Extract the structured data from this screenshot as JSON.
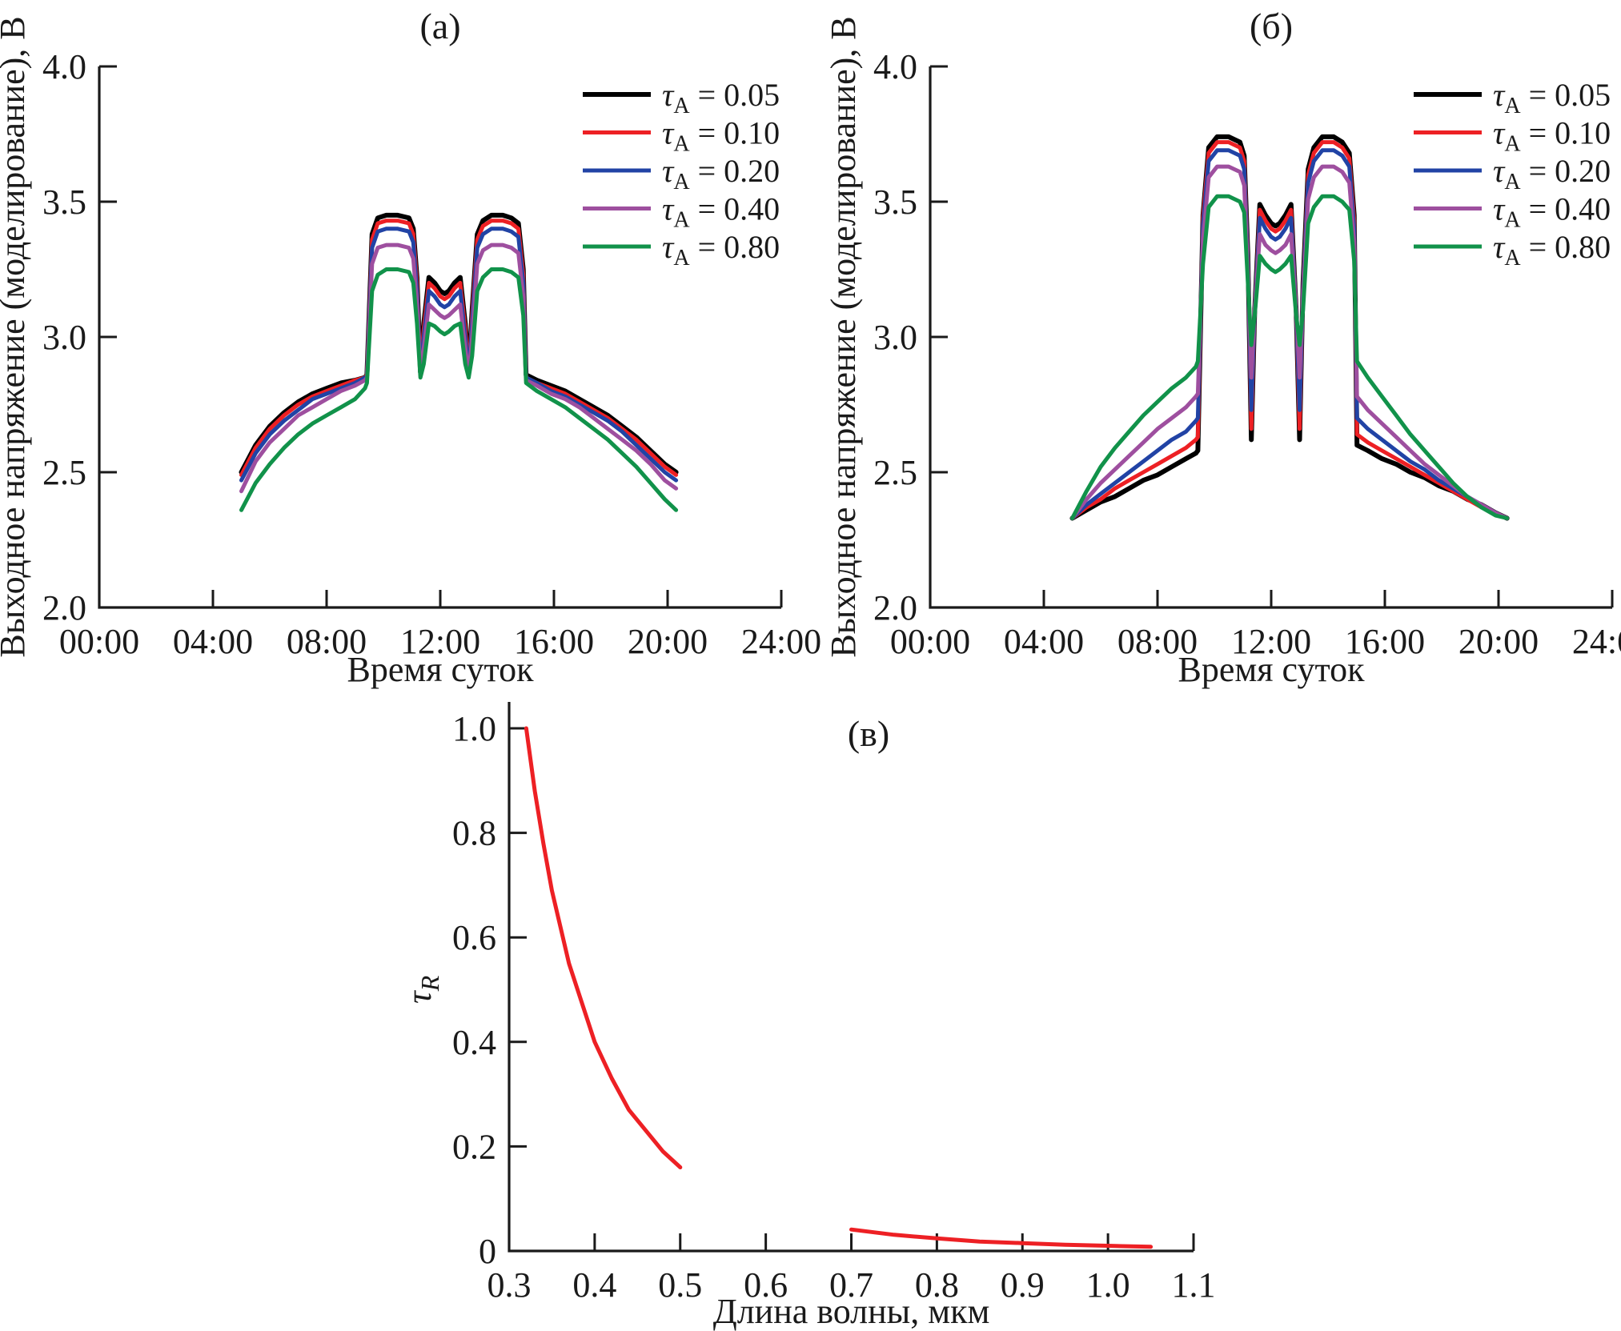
{
  "figure": {
    "background": "#ffffff",
    "axis_color": "#1a1a1a",
    "panel_labels": [
      "(а)",
      "(б)",
      "(в)"
    ]
  },
  "chart_data": [
    {
      "id": "a",
      "type": "line",
      "title": "(а)",
      "xlabel": "Время суток",
      "ylabel": "Выходное напряжение (моделирование), В",
      "xlim": [
        0,
        24
      ],
      "ylim": [
        2.0,
        4.0
      ],
      "grid": false,
      "legend_position": "upper right",
      "legend_symbol": {
        "base": "τ",
        "sub": "A"
      },
      "xticks": [
        {
          "value": 0,
          "label": "00:00"
        },
        {
          "value": 4,
          "label": "04:00"
        },
        {
          "value": 8,
          "label": "08:00"
        },
        {
          "value": 12,
          "label": "12:00"
        },
        {
          "value": 16,
          "label": "16:00"
        },
        {
          "value": 20,
          "label": "20:00"
        },
        {
          "value": 24,
          "label": "24:00"
        }
      ],
      "yticks": [
        {
          "value": 2.0,
          "label": "2.0"
        },
        {
          "value": 2.5,
          "label": "2.5"
        },
        {
          "value": 3.0,
          "label": "3.0"
        },
        {
          "value": 3.5,
          "label": "3.5"
        },
        {
          "value": 4.0,
          "label": "4.0"
        }
      ],
      "x_hours": [
        5,
        5.5,
        6,
        6.5,
        7,
        7.5,
        8,
        8.5,
        9,
        9.35,
        9.42,
        9.6,
        9.8,
        10.1,
        10.5,
        10.9,
        11.05,
        11.18,
        11.3,
        11.42,
        11.6,
        11.8,
        12,
        12.15,
        12.3,
        12.5,
        12.7,
        12.88,
        13,
        13.12,
        13.3,
        13.5,
        13.8,
        14.2,
        14.5,
        14.75,
        14.92,
        15.02,
        15.4,
        15.9,
        16.4,
        16.9,
        17.4,
        17.9,
        18.4,
        18.9,
        19.4,
        19.9,
        20.3
      ],
      "series": [
        {
          "id": "tau-005",
          "tau_a": "0.05",
          "legend_label": "τA = 0.05",
          "color": "#000000",
          "stroke_width": 6,
          "values": [
            2.5,
            2.6,
            2.67,
            2.72,
            2.76,
            2.79,
            2.81,
            2.83,
            2.84,
            2.85,
            2.86,
            3.38,
            3.44,
            3.45,
            3.45,
            3.44,
            3.4,
            3.22,
            2.87,
            3.05,
            3.22,
            3.2,
            3.17,
            3.16,
            3.17,
            3.2,
            3.22,
            3.05,
            2.87,
            3.1,
            3.38,
            3.43,
            3.45,
            3.45,
            3.44,
            3.42,
            3.25,
            2.86,
            2.84,
            2.82,
            2.8,
            2.77,
            2.74,
            2.71,
            2.67,
            2.63,
            2.58,
            2.53,
            2.5
          ]
        },
        {
          "id": "tau-010",
          "tau_a": "0.10",
          "legend_label": "τA = 0.10",
          "color": "#ed2024",
          "stroke_width": 5,
          "values": [
            2.49,
            2.59,
            2.66,
            2.71,
            2.75,
            2.78,
            2.8,
            2.82,
            2.84,
            2.85,
            2.86,
            3.36,
            3.42,
            3.43,
            3.43,
            3.42,
            3.38,
            3.2,
            2.87,
            3.03,
            3.2,
            3.18,
            3.15,
            3.14,
            3.15,
            3.18,
            3.2,
            3.03,
            2.87,
            3.08,
            3.36,
            3.41,
            3.43,
            3.43,
            3.42,
            3.4,
            3.23,
            2.85,
            2.83,
            2.81,
            2.79,
            2.76,
            2.73,
            2.7,
            2.66,
            2.62,
            2.57,
            2.52,
            2.49
          ]
        },
        {
          "id": "tau-020",
          "tau_a": "0.20",
          "legend_label": "τA = 0.20",
          "color": "#2143a5",
          "stroke_width": 5,
          "values": [
            2.47,
            2.57,
            2.64,
            2.69,
            2.73,
            2.77,
            2.79,
            2.81,
            2.83,
            2.85,
            2.85,
            3.33,
            3.39,
            3.4,
            3.4,
            3.39,
            3.35,
            3.17,
            2.86,
            3.0,
            3.17,
            3.15,
            3.12,
            3.11,
            3.12,
            3.15,
            3.17,
            3.0,
            2.86,
            3.05,
            3.33,
            3.38,
            3.4,
            3.4,
            3.39,
            3.37,
            3.2,
            2.85,
            2.83,
            2.8,
            2.78,
            2.75,
            2.72,
            2.69,
            2.65,
            2.6,
            2.55,
            2.5,
            2.47
          ]
        },
        {
          "id": "tau-040",
          "tau_a": "0.40",
          "legend_label": "τA = 0.40",
          "color": "#9e4f9f",
          "stroke_width": 5,
          "values": [
            2.43,
            2.54,
            2.61,
            2.66,
            2.71,
            2.74,
            2.77,
            2.8,
            2.82,
            2.84,
            2.85,
            3.27,
            3.33,
            3.34,
            3.34,
            3.33,
            3.29,
            3.12,
            2.86,
            2.96,
            3.12,
            3.1,
            3.08,
            3.07,
            3.08,
            3.1,
            3.12,
            2.96,
            2.86,
            3.0,
            3.27,
            3.32,
            3.34,
            3.34,
            3.33,
            3.31,
            3.15,
            2.84,
            2.82,
            2.79,
            2.77,
            2.74,
            2.7,
            2.66,
            2.62,
            2.58,
            2.53,
            2.47,
            2.44
          ]
        },
        {
          "id": "tau-080",
          "tau_a": "0.80",
          "legend_label": "τA = 0.80",
          "color": "#11924a",
          "stroke_width": 5,
          "values": [
            2.36,
            2.46,
            2.53,
            2.59,
            2.64,
            2.68,
            2.71,
            2.74,
            2.77,
            2.81,
            2.83,
            3.17,
            3.23,
            3.25,
            3.25,
            3.24,
            3.2,
            3.05,
            2.85,
            2.9,
            3.05,
            3.04,
            3.02,
            3.01,
            3.02,
            3.04,
            3.05,
            2.9,
            2.85,
            2.93,
            3.17,
            3.22,
            3.25,
            3.25,
            3.24,
            3.22,
            3.08,
            2.83,
            2.8,
            2.77,
            2.74,
            2.7,
            2.66,
            2.62,
            2.57,
            2.52,
            2.46,
            2.4,
            2.36
          ]
        }
      ]
    },
    {
      "id": "b",
      "type": "line",
      "title": "(б)",
      "xlabel": "Время суток",
      "ylabel": "Выходное напряжение (моделирование), В",
      "xlim": [
        0,
        24
      ],
      "ylim": [
        2.0,
        4.0
      ],
      "grid": false,
      "legend_position": "upper right",
      "legend_symbol": {
        "base": "τ",
        "sub": "A"
      },
      "xticks": [
        {
          "value": 0,
          "label": "00:00"
        },
        {
          "value": 4,
          "label": "04:00"
        },
        {
          "value": 8,
          "label": "08:00"
        },
        {
          "value": 12,
          "label": "12:00"
        },
        {
          "value": 16,
          "label": "16:00"
        },
        {
          "value": 20,
          "label": "20:00"
        },
        {
          "value": 24,
          "label": "24:00"
        }
      ],
      "yticks": [
        {
          "value": 2.0,
          "label": "2.0"
        },
        {
          "value": 2.5,
          "label": "2.5"
        },
        {
          "value": 3.0,
          "label": "3.0"
        },
        {
          "value": 3.5,
          "label": "3.5"
        },
        {
          "value": 4.0,
          "label": "4.0"
        }
      ],
      "x_hours": [
        5,
        5.5,
        6,
        6.5,
        7,
        7.5,
        8,
        8.5,
        9,
        9.35,
        9.42,
        9.6,
        9.8,
        10.1,
        10.5,
        10.9,
        11.05,
        11.18,
        11.3,
        11.42,
        11.6,
        11.8,
        12,
        12.15,
        12.3,
        12.5,
        12.7,
        12.88,
        13,
        13.12,
        13.3,
        13.5,
        13.8,
        14.2,
        14.5,
        14.75,
        14.92,
        15.02,
        15.4,
        15.9,
        16.4,
        16.9,
        17.4,
        17.9,
        18.4,
        18.9,
        19.4,
        19.9,
        20.3
      ],
      "series": [
        {
          "id": "tau-005",
          "tau_a": "0.05",
          "legend_label": "τA = 0.05",
          "color": "#000000",
          "stroke_width": 6,
          "values": [
            2.33,
            2.36,
            2.39,
            2.41,
            2.44,
            2.47,
            2.49,
            2.52,
            2.55,
            2.57,
            2.58,
            3.45,
            3.7,
            3.74,
            3.74,
            3.72,
            3.67,
            3.3,
            2.62,
            3.1,
            3.49,
            3.45,
            3.42,
            3.41,
            3.42,
            3.45,
            3.49,
            3.1,
            2.62,
            3.2,
            3.62,
            3.7,
            3.74,
            3.74,
            3.72,
            3.68,
            3.45,
            2.6,
            2.58,
            2.55,
            2.53,
            2.5,
            2.48,
            2.45,
            2.43,
            2.4,
            2.38,
            2.35,
            2.33
          ]
        },
        {
          "id": "tau-010",
          "tau_a": "0.10",
          "legend_label": "τA = 0.10",
          "color": "#ed2024",
          "stroke_width": 5,
          "values": [
            2.33,
            2.37,
            2.4,
            2.44,
            2.47,
            2.5,
            2.53,
            2.56,
            2.59,
            2.62,
            2.63,
            3.44,
            3.68,
            3.72,
            3.72,
            3.7,
            3.65,
            3.28,
            2.66,
            3.1,
            3.47,
            3.43,
            3.4,
            3.39,
            3.4,
            3.43,
            3.47,
            3.1,
            2.66,
            3.18,
            3.6,
            3.68,
            3.72,
            3.72,
            3.7,
            3.66,
            3.43,
            2.64,
            2.61,
            2.58,
            2.55,
            2.52,
            2.49,
            2.46,
            2.43,
            2.4,
            2.37,
            2.35,
            2.33
          ]
        },
        {
          "id": "tau-020",
          "tau_a": "0.20",
          "legend_label": "τA = 0.20",
          "color": "#2143a5",
          "stroke_width": 5,
          "values": [
            2.33,
            2.38,
            2.42,
            2.46,
            2.5,
            2.54,
            2.58,
            2.62,
            2.65,
            2.69,
            2.7,
            3.41,
            3.65,
            3.69,
            3.69,
            3.67,
            3.62,
            3.27,
            2.73,
            3.1,
            3.44,
            3.4,
            3.37,
            3.36,
            3.37,
            3.4,
            3.44,
            3.1,
            2.73,
            3.17,
            3.57,
            3.65,
            3.69,
            3.69,
            3.67,
            3.63,
            3.4,
            2.7,
            2.66,
            2.62,
            2.58,
            2.54,
            2.51,
            2.47,
            2.44,
            2.41,
            2.38,
            2.35,
            2.33
          ]
        },
        {
          "id": "tau-040",
          "tau_a": "0.40",
          "legend_label": "τA = 0.40",
          "color": "#9e4f9f",
          "stroke_width": 5,
          "values": [
            2.33,
            2.4,
            2.46,
            2.51,
            2.56,
            2.61,
            2.66,
            2.7,
            2.74,
            2.78,
            2.79,
            3.36,
            3.59,
            3.63,
            3.63,
            3.61,
            3.56,
            3.25,
            2.85,
            3.1,
            3.38,
            3.34,
            3.32,
            3.31,
            3.32,
            3.34,
            3.38,
            3.1,
            2.85,
            3.15,
            3.51,
            3.59,
            3.63,
            3.63,
            3.61,
            3.57,
            3.35,
            2.78,
            2.73,
            2.68,
            2.63,
            2.58,
            2.53,
            2.49,
            2.45,
            2.41,
            2.38,
            2.35,
            2.33
          ]
        },
        {
          "id": "tau-080",
          "tau_a": "0.80",
          "legend_label": "τA = 0.80",
          "color": "#11924a",
          "stroke_width": 5,
          "values": [
            2.33,
            2.43,
            2.52,
            2.59,
            2.65,
            2.71,
            2.76,
            2.81,
            2.85,
            2.89,
            2.91,
            3.27,
            3.48,
            3.52,
            3.52,
            3.5,
            3.46,
            3.2,
            2.97,
            3.08,
            3.3,
            3.27,
            3.25,
            3.24,
            3.25,
            3.27,
            3.3,
            3.08,
            2.97,
            3.1,
            3.42,
            3.48,
            3.52,
            3.52,
            3.5,
            3.47,
            3.28,
            2.91,
            2.85,
            2.78,
            2.71,
            2.64,
            2.58,
            2.52,
            2.46,
            2.41,
            2.37,
            2.34,
            2.33
          ]
        }
      ]
    },
    {
      "id": "v",
      "type": "line",
      "title": "(в)",
      "xlabel": "Длина волны, мкм",
      "ylabel": {
        "base": "τ",
        "sub": "R"
      },
      "xlim": [
        0.3,
        1.1
      ],
      "ylim": [
        0,
        1.0
      ],
      "grid": false,
      "legend_position": "none",
      "xticks": [
        {
          "value": 0.3,
          "label": "0.3"
        },
        {
          "value": 0.4,
          "label": "0.4"
        },
        {
          "value": 0.5,
          "label": "0.5"
        },
        {
          "value": 0.6,
          "label": "0.6"
        },
        {
          "value": 0.7,
          "label": "0.7"
        },
        {
          "value": 0.8,
          "label": "0.8"
        },
        {
          "value": 0.9,
          "label": "0.9"
        },
        {
          "value": 1.0,
          "label": "1.0"
        },
        {
          "value": 1.1,
          "label": "1.1"
        }
      ],
      "yticks": [
        {
          "value": 0,
          "label": "0"
        },
        {
          "value": 0.2,
          "label": "0.2"
        },
        {
          "value": 0.4,
          "label": "0.4"
        },
        {
          "value": 0.6,
          "label": "0.6"
        },
        {
          "value": 0.8,
          "label": "0.8"
        },
        {
          "value": 1.0,
          "label": "1.0"
        }
      ],
      "series": [
        {
          "id": "rayleigh-segment-1",
          "color": "#ed2024",
          "stroke_width": 5,
          "x": [
            0.32,
            0.33,
            0.34,
            0.35,
            0.36,
            0.37,
            0.38,
            0.39,
            0.4,
            0.42,
            0.44,
            0.46,
            0.48,
            0.5
          ],
          "values": [
            1.0,
            0.88,
            0.78,
            0.69,
            0.62,
            0.55,
            0.5,
            0.45,
            0.4,
            0.33,
            0.27,
            0.23,
            0.19,
            0.16
          ]
        },
        {
          "id": "rayleigh-segment-2",
          "color": "#ed2024",
          "stroke_width": 5,
          "x": [
            0.7,
            0.75,
            0.8,
            0.85,
            0.9,
            0.95,
            1.0,
            1.05
          ],
          "values": [
            0.041,
            0.031,
            0.024,
            0.018,
            0.015,
            0.012,
            0.01,
            0.008
          ]
        }
      ]
    }
  ]
}
